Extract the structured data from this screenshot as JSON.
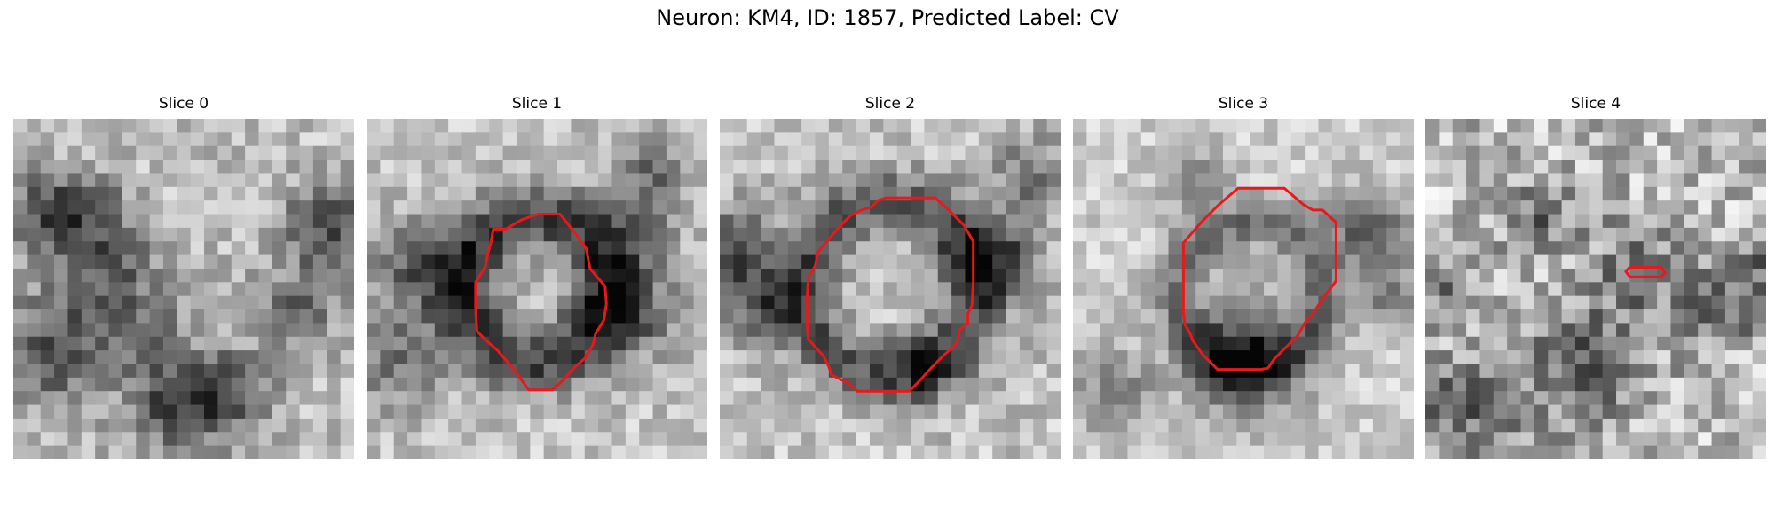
{
  "figure": {
    "title": "Neuron: KM4, ID: 1857, Predicted Label: CV",
    "contour_color": "#e8191c"
  },
  "panels": [
    {
      "title": "Slice 0",
      "has_contour": false
    },
    {
      "title": "Slice 1",
      "has_contour": true
    },
    {
      "title": "Slice 2",
      "has_contour": true
    },
    {
      "title": "Slice 3",
      "has_contour": true
    },
    {
      "title": "Slice 4",
      "has_contour": true
    }
  ]
}
